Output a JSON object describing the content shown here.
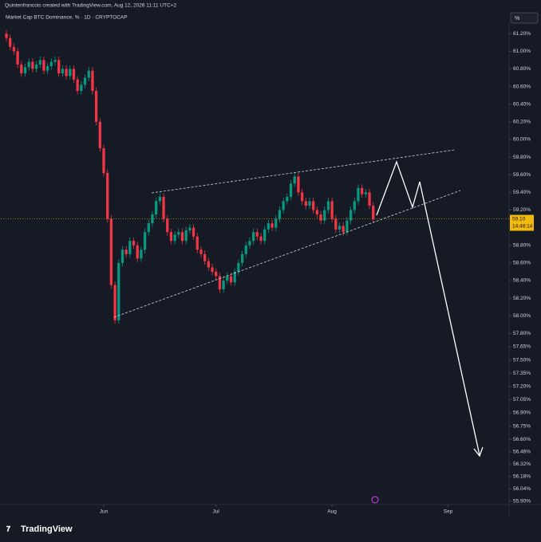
{
  "header": {
    "credit": "Quintenfrancois created with TradingView.com, Aug 12, 2026 11:11 UTC+2",
    "logo": "TradingView"
  },
  "chart_data": {
    "type": "candlestick",
    "title": "Market Cap BTC Dominance, % · 1D · CRYPTOCAP",
    "unit_label": "%",
    "up_color": "#089981",
    "down_color": "#f23645",
    "open": [
      61.2,
      61.15,
      61.05,
      61.0,
      60.85,
      60.75,
      60.82,
      60.88,
      60.8,
      60.85,
      60.9,
      60.78,
      60.83,
      60.88,
      60.9,
      60.75,
      60.8,
      60.72,
      60.8,
      60.68,
      60.55,
      60.62,
      60.7,
      60.78,
      60.55,
      60.2,
      59.9,
      59.62,
      59.1,
      58.35,
      57.95,
      58.6,
      58.75,
      58.7,
      58.85,
      58.8,
      58.65,
      58.75,
      58.95,
      59.05,
      59.15,
      59.3,
      59.35,
      59.1,
      58.95,
      58.85,
      58.92,
      58.95,
      58.85,
      58.97,
      59.0,
      58.9,
      58.75,
      58.7,
      58.62,
      58.55,
      58.5,
      58.45,
      58.3,
      58.4,
      58.45,
      58.38,
      58.5,
      58.6,
      58.7,
      58.8,
      58.85,
      58.95,
      58.9,
      58.85,
      58.98,
      59.05,
      59.0,
      59.1,
      59.2,
      59.3,
      59.35,
      59.5,
      59.58,
      59.4,
      59.3,
      59.25,
      59.3,
      59.2,
      59.15,
      59.08,
      59.2,
      59.3,
      59.1,
      58.98,
      59.02,
      58.95,
      59.08,
      59.2,
      59.3,
      59.45,
      59.38,
      59.4,
      59.25
    ],
    "high": [
      61.24,
      61.19,
      61.09,
      61.04,
      60.89,
      60.86,
      60.92,
      60.92,
      60.89,
      60.94,
      60.94,
      60.87,
      60.92,
      60.94,
      60.94,
      60.84,
      60.84,
      60.84,
      60.84,
      60.72,
      60.66,
      60.74,
      60.82,
      60.82,
      60.59,
      60.24,
      59.94,
      59.66,
      59.14,
      58.39,
      58.64,
      58.79,
      58.79,
      58.89,
      58.89,
      58.84,
      58.79,
      58.99,
      59.09,
      59.19,
      59.34,
      59.39,
      59.39,
      59.14,
      58.99,
      58.96,
      58.99,
      58.99,
      59.01,
      59.04,
      59.04,
      58.94,
      58.79,
      58.74,
      58.66,
      58.59,
      58.54,
      58.49,
      58.44,
      58.49,
      58.49,
      58.54,
      58.64,
      58.74,
      58.84,
      58.89,
      58.99,
      58.99,
      58.94,
      59.02,
      59.09,
      59.09,
      59.14,
      59.24,
      59.34,
      59.39,
      59.54,
      59.62,
      59.62,
      59.44,
      59.34,
      59.34,
      59.34,
      59.24,
      59.19,
      59.24,
      59.34,
      59.34,
      59.14,
      59.06,
      59.06,
      59.12,
      59.24,
      59.34,
      59.49,
      59.49,
      59.44,
      59.44,
      59.29
    ],
    "low": [
      61.11,
      61.01,
      60.96,
      60.81,
      60.71,
      60.71,
      60.78,
      60.76,
      60.76,
      60.81,
      60.74,
      60.74,
      60.79,
      60.84,
      60.71,
      60.71,
      60.68,
      60.68,
      60.64,
      60.51,
      60.51,
      60.58,
      60.66,
      60.51,
      60.16,
      59.86,
      59.58,
      59.06,
      58.31,
      57.91,
      57.91,
      58.56,
      58.66,
      58.66,
      58.76,
      58.61,
      58.61,
      58.71,
      58.91,
      59.01,
      59.11,
      59.26,
      59.06,
      58.91,
      58.81,
      58.81,
      58.88,
      58.81,
      58.81,
      58.93,
      58.86,
      58.71,
      58.66,
      58.58,
      58.51,
      58.46,
      58.41,
      58.26,
      58.26,
      58.36,
      58.34,
      58.34,
      58.46,
      58.56,
      58.66,
      58.76,
      58.81,
      58.86,
      58.81,
      58.81,
      58.94,
      58.96,
      58.96,
      59.06,
      59.16,
      59.26,
      59.31,
      59.46,
      59.36,
      59.26,
      59.21,
      59.21,
      59.16,
      59.11,
      59.04,
      59.04,
      59.16,
      59.06,
      58.94,
      58.94,
      58.91,
      58.91,
      59.04,
      59.16,
      59.26,
      59.34,
      59.34,
      59.21,
      59.06
    ],
    "close": [
      61.15,
      61.05,
      61.0,
      60.85,
      60.75,
      60.82,
      60.88,
      60.8,
      60.85,
      60.9,
      60.78,
      60.83,
      60.88,
      60.9,
      60.75,
      60.8,
      60.72,
      60.8,
      60.68,
      60.55,
      60.62,
      60.7,
      60.78,
      60.55,
      60.2,
      59.9,
      59.62,
      59.1,
      58.35,
      57.95,
      58.6,
      58.75,
      58.7,
      58.85,
      58.8,
      58.65,
      58.75,
      58.95,
      59.05,
      59.15,
      59.3,
      59.35,
      59.1,
      58.95,
      58.85,
      58.92,
      58.95,
      58.85,
      58.97,
      59.0,
      58.9,
      58.75,
      58.7,
      58.62,
      58.55,
      58.5,
      58.45,
      58.3,
      58.4,
      58.45,
      58.38,
      58.5,
      58.6,
      58.7,
      58.8,
      58.85,
      58.95,
      58.9,
      58.85,
      58.98,
      59.05,
      59.0,
      59.1,
      59.2,
      59.3,
      59.35,
      59.5,
      59.58,
      59.4,
      59.3,
      59.25,
      59.3,
      59.2,
      59.15,
      59.08,
      59.2,
      59.3,
      59.1,
      58.98,
      59.02,
      58.95,
      59.08,
      59.2,
      59.3,
      59.45,
      59.38,
      59.4,
      59.25,
      59.1
    ],
    "xlim": [
      -1.5,
      134.3
    ],
    "xticks": [
      {
        "value": 26,
        "label": "Jun"
      },
      {
        "value": 56,
        "label": "Jul"
      },
      {
        "value": 87,
        "label": "Aug"
      },
      {
        "value": 118,
        "label": "Sep"
      }
    ],
    "ylim": [
      55.87,
      61.31
    ],
    "yticks": [
      {
        "value": 61.2,
        "label": "61.20%"
      },
      {
        "value": 61.0,
        "label": "61.00%"
      },
      {
        "value": 60.8,
        "label": "60.80%"
      },
      {
        "value": 60.6,
        "label": "60.60%"
      },
      {
        "value": 60.4,
        "label": "60.40%"
      },
      {
        "value": 60.2,
        "label": "60.20%"
      },
      {
        "value": 60.0,
        "label": "60.00%"
      },
      {
        "value": 59.8,
        "label": "59.80%"
      },
      {
        "value": 59.6,
        "label": "59.60%"
      },
      {
        "value": 59.4,
        "label": "59.40%"
      },
      {
        "value": 59.2,
        "label": "59.20%"
      },
      {
        "value": 58.8,
        "label": "58.80%"
      },
      {
        "value": 58.6,
        "label": "58.60%"
      },
      {
        "value": 58.4,
        "label": "58.40%"
      },
      {
        "value": 58.2,
        "label": "58.20%"
      },
      {
        "value": 58.0,
        "label": "58.00%"
      },
      {
        "value": 57.8,
        "label": "57.80%"
      },
      {
        "value": 57.65,
        "label": "57.65%"
      },
      {
        "value": 57.5,
        "label": "57.50%"
      },
      {
        "value": 57.35,
        "label": "57.35%"
      },
      {
        "value": 57.2,
        "label": "57.20%"
      },
      {
        "value": 57.05,
        "label": "57.05%"
      },
      {
        "value": 56.9,
        "label": "56.90%"
      },
      {
        "value": 56.75,
        "label": "56.75%"
      },
      {
        "value": 56.6,
        "label": "56.60%"
      },
      {
        "value": 56.46,
        "label": "56.46%"
      },
      {
        "value": 56.32,
        "label": "56.32%"
      },
      {
        "value": 56.18,
        "label": "56.18%"
      },
      {
        "value": 56.04,
        "label": "56.04%"
      },
      {
        "value": 55.9,
        "label": "55.90%"
      }
    ],
    "last_price": {
      "value": 59.1,
      "label": "59.10",
      "countdown": "14:48:14",
      "color": "#f0b90b"
    }
  }
}
